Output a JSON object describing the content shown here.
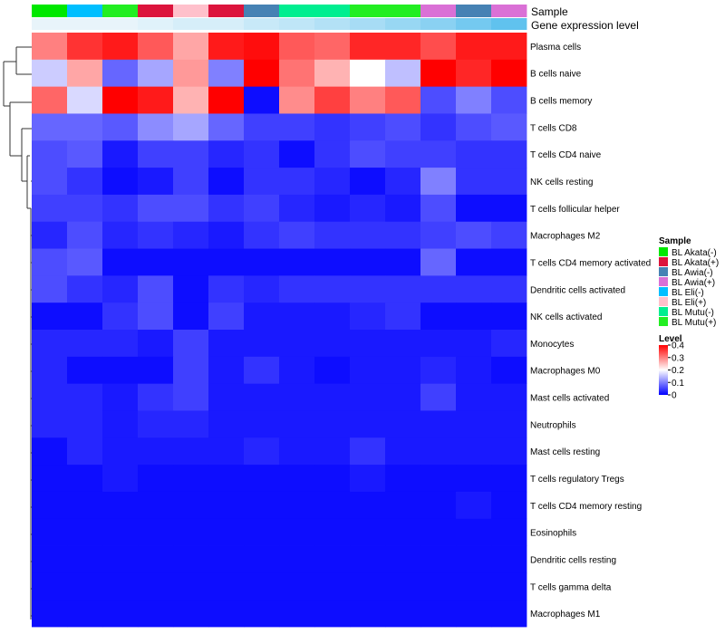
{
  "chart_data": {
    "type": "heatmap",
    "annotation_labels": [
      "Sample",
      "Gene expression level"
    ],
    "sample_legend": {
      "title": "Sample",
      "items": [
        {
          "label": "BL Akata(-)",
          "color": "#00e800"
        },
        {
          "label": "BL Akata(+)",
          "color": "#dc143c"
        },
        {
          "label": "BL Awia(-)",
          "color": "#4682b4"
        },
        {
          "label": "BL Awia(+)",
          "color": "#da70d6"
        },
        {
          "label": "BL Eli(-)",
          "color": "#00bfff"
        },
        {
          "label": "BL Eli(+)",
          "color": "#ffc0cb"
        },
        {
          "label": "BL Mutu(-)",
          "color": "#00ee90"
        },
        {
          "label": "BL Mutu(+)",
          "color": "#22ee22"
        }
      ]
    },
    "level_legend": {
      "title": "Level",
      "ticks": [
        "0.4",
        "0.3",
        "0.2",
        "0.1",
        "0"
      ],
      "tick_values": [
        0.4,
        0.3,
        0.2,
        0.1,
        0
      ],
      "range": [
        0,
        0.4
      ],
      "colors": [
        "#0000ff",
        "#ffffff",
        "#ff0000"
      ]
    },
    "sample_colors": [
      "#00e800",
      "#00bfff",
      "#22ee22",
      "#dc143c",
      "#ffc0cb",
      "#dc143c",
      "#4682b4",
      "#00ee90",
      "#00ee90",
      "#22ee22",
      "#22ee22",
      "#da70d6",
      "#4682b4",
      "#da70d6"
    ],
    "expression_colors": [
      "#e8f4fa",
      "#e8f4fa",
      "#e8f4fa",
      "#e0f2fa",
      "#d6eef9",
      "#d6eef9",
      "#c8e9f8",
      "#bfe6f7",
      "#b3e1f6",
      "#a7dcf5",
      "#98d7f3",
      "#8ad1f2",
      "#74c9f0",
      "#60c2ee"
    ],
    "rows": [
      "Plasma cells",
      "B cells naive",
      "B cells memory",
      "T cells CD8",
      "T cells CD4 naive",
      "NK cells resting",
      "T cells follicular helper",
      "Macrophages M2",
      "T cells CD4 memory activated",
      "Dendritic cells activated",
      "NK cells activated",
      "Monocytes",
      "Macrophages M0",
      "Mast cells activated",
      "Neutrophils",
      "Mast cells resting",
      "T cells regulatory  Tregs",
      "T cells CD4 memory resting",
      "Eosinophils",
      "Dendritic cells resting",
      "T cells gamma delta",
      "Macrophages M1"
    ],
    "values": [
      [
        0.3,
        0.36,
        0.38,
        0.33,
        0.27,
        0.38,
        0.39,
        0.33,
        0.32,
        0.37,
        0.37,
        0.34,
        0.38,
        0.38
      ],
      [
        0.16,
        0.27,
        0.08,
        0.13,
        0.28,
        0.1,
        0.4,
        0.31,
        0.26,
        0.2,
        0.15,
        0.4,
        0.37,
        0.4
      ],
      [
        0.32,
        0.17,
        0.4,
        0.38,
        0.26,
        0.4,
        0.01,
        0.29,
        0.35,
        0.3,
        0.33,
        0.06,
        0.1,
        0.06
      ],
      [
        0.08,
        0.08,
        0.07,
        0.11,
        0.13,
        0.08,
        0.05,
        0.05,
        0.04,
        0.05,
        0.06,
        0.04,
        0.06,
        0.07
      ],
      [
        0.06,
        0.07,
        0.02,
        0.05,
        0.05,
        0.03,
        0.04,
        0.01,
        0.04,
        0.06,
        0.05,
        0.05,
        0.04,
        0.04
      ],
      [
        0.06,
        0.04,
        0.01,
        0.02,
        0.05,
        0.01,
        0.04,
        0.04,
        0.03,
        0.01,
        0.03,
        0.1,
        0.04,
        0.04
      ],
      [
        0.05,
        0.05,
        0.04,
        0.06,
        0.06,
        0.04,
        0.05,
        0.03,
        0.02,
        0.03,
        0.02,
        0.06,
        0.01,
        0.01
      ],
      [
        0.03,
        0.06,
        0.03,
        0.04,
        0.03,
        0.02,
        0.04,
        0.05,
        0.04,
        0.04,
        0.04,
        0.05,
        0.06,
        0.05
      ],
      [
        0.06,
        0.07,
        0.01,
        0.01,
        0.01,
        0.01,
        0.01,
        0.01,
        0.01,
        0.01,
        0.01,
        0.08,
        0.01,
        0.01
      ],
      [
        0.06,
        0.04,
        0.03,
        0.06,
        0.01,
        0.04,
        0.03,
        0.04,
        0.04,
        0.04,
        0.04,
        0.04,
        0.04,
        0.04
      ],
      [
        0.01,
        0.01,
        0.04,
        0.06,
        0.01,
        0.05,
        0.02,
        0.02,
        0.02,
        0.03,
        0.04,
        0.01,
        0.01,
        0.01
      ],
      [
        0.03,
        0.03,
        0.03,
        0.02,
        0.05,
        0.02,
        0.02,
        0.02,
        0.02,
        0.02,
        0.02,
        0.02,
        0.02,
        0.03
      ],
      [
        0.03,
        0.01,
        0.01,
        0.01,
        0.05,
        0.02,
        0.04,
        0.02,
        0.01,
        0.02,
        0.02,
        0.03,
        0.02,
        0.01
      ],
      [
        0.03,
        0.03,
        0.02,
        0.04,
        0.05,
        0.02,
        0.02,
        0.02,
        0.02,
        0.02,
        0.02,
        0.05,
        0.02,
        0.02
      ],
      [
        0.03,
        0.03,
        0.02,
        0.03,
        0.03,
        0.02,
        0.02,
        0.02,
        0.02,
        0.02,
        0.02,
        0.02,
        0.02,
        0.02
      ],
      [
        0.01,
        0.03,
        0.02,
        0.02,
        0.02,
        0.02,
        0.03,
        0.02,
        0.02,
        0.04,
        0.02,
        0.02,
        0.02,
        0.02
      ],
      [
        0.01,
        0.01,
        0.02,
        0.01,
        0.01,
        0.01,
        0.01,
        0.01,
        0.01,
        0.02,
        0.01,
        0.01,
        0.01,
        0.01
      ],
      [
        0.01,
        0.01,
        0.01,
        0.01,
        0.01,
        0.01,
        0.01,
        0.01,
        0.01,
        0.01,
        0.01,
        0.01,
        0.02,
        0.01
      ],
      [
        0.01,
        0.01,
        0.01,
        0.01,
        0.01,
        0.01,
        0.01,
        0.01,
        0.01,
        0.01,
        0.01,
        0.01,
        0.01,
        0.01
      ],
      [
        0.01,
        0.01,
        0.01,
        0.01,
        0.01,
        0.01,
        0.01,
        0.01,
        0.01,
        0.01,
        0.01,
        0.01,
        0.01,
        0.01
      ],
      [
        0.01,
        0.01,
        0.01,
        0.01,
        0.01,
        0.01,
        0.01,
        0.01,
        0.01,
        0.01,
        0.01,
        0.01,
        0.01,
        0.01
      ],
      [
        0.01,
        0.01,
        0.01,
        0.01,
        0.01,
        0.01,
        0.01,
        0.01,
        0.01,
        0.01,
        0.01,
        0.01,
        0.01,
        0.01
      ]
    ]
  }
}
